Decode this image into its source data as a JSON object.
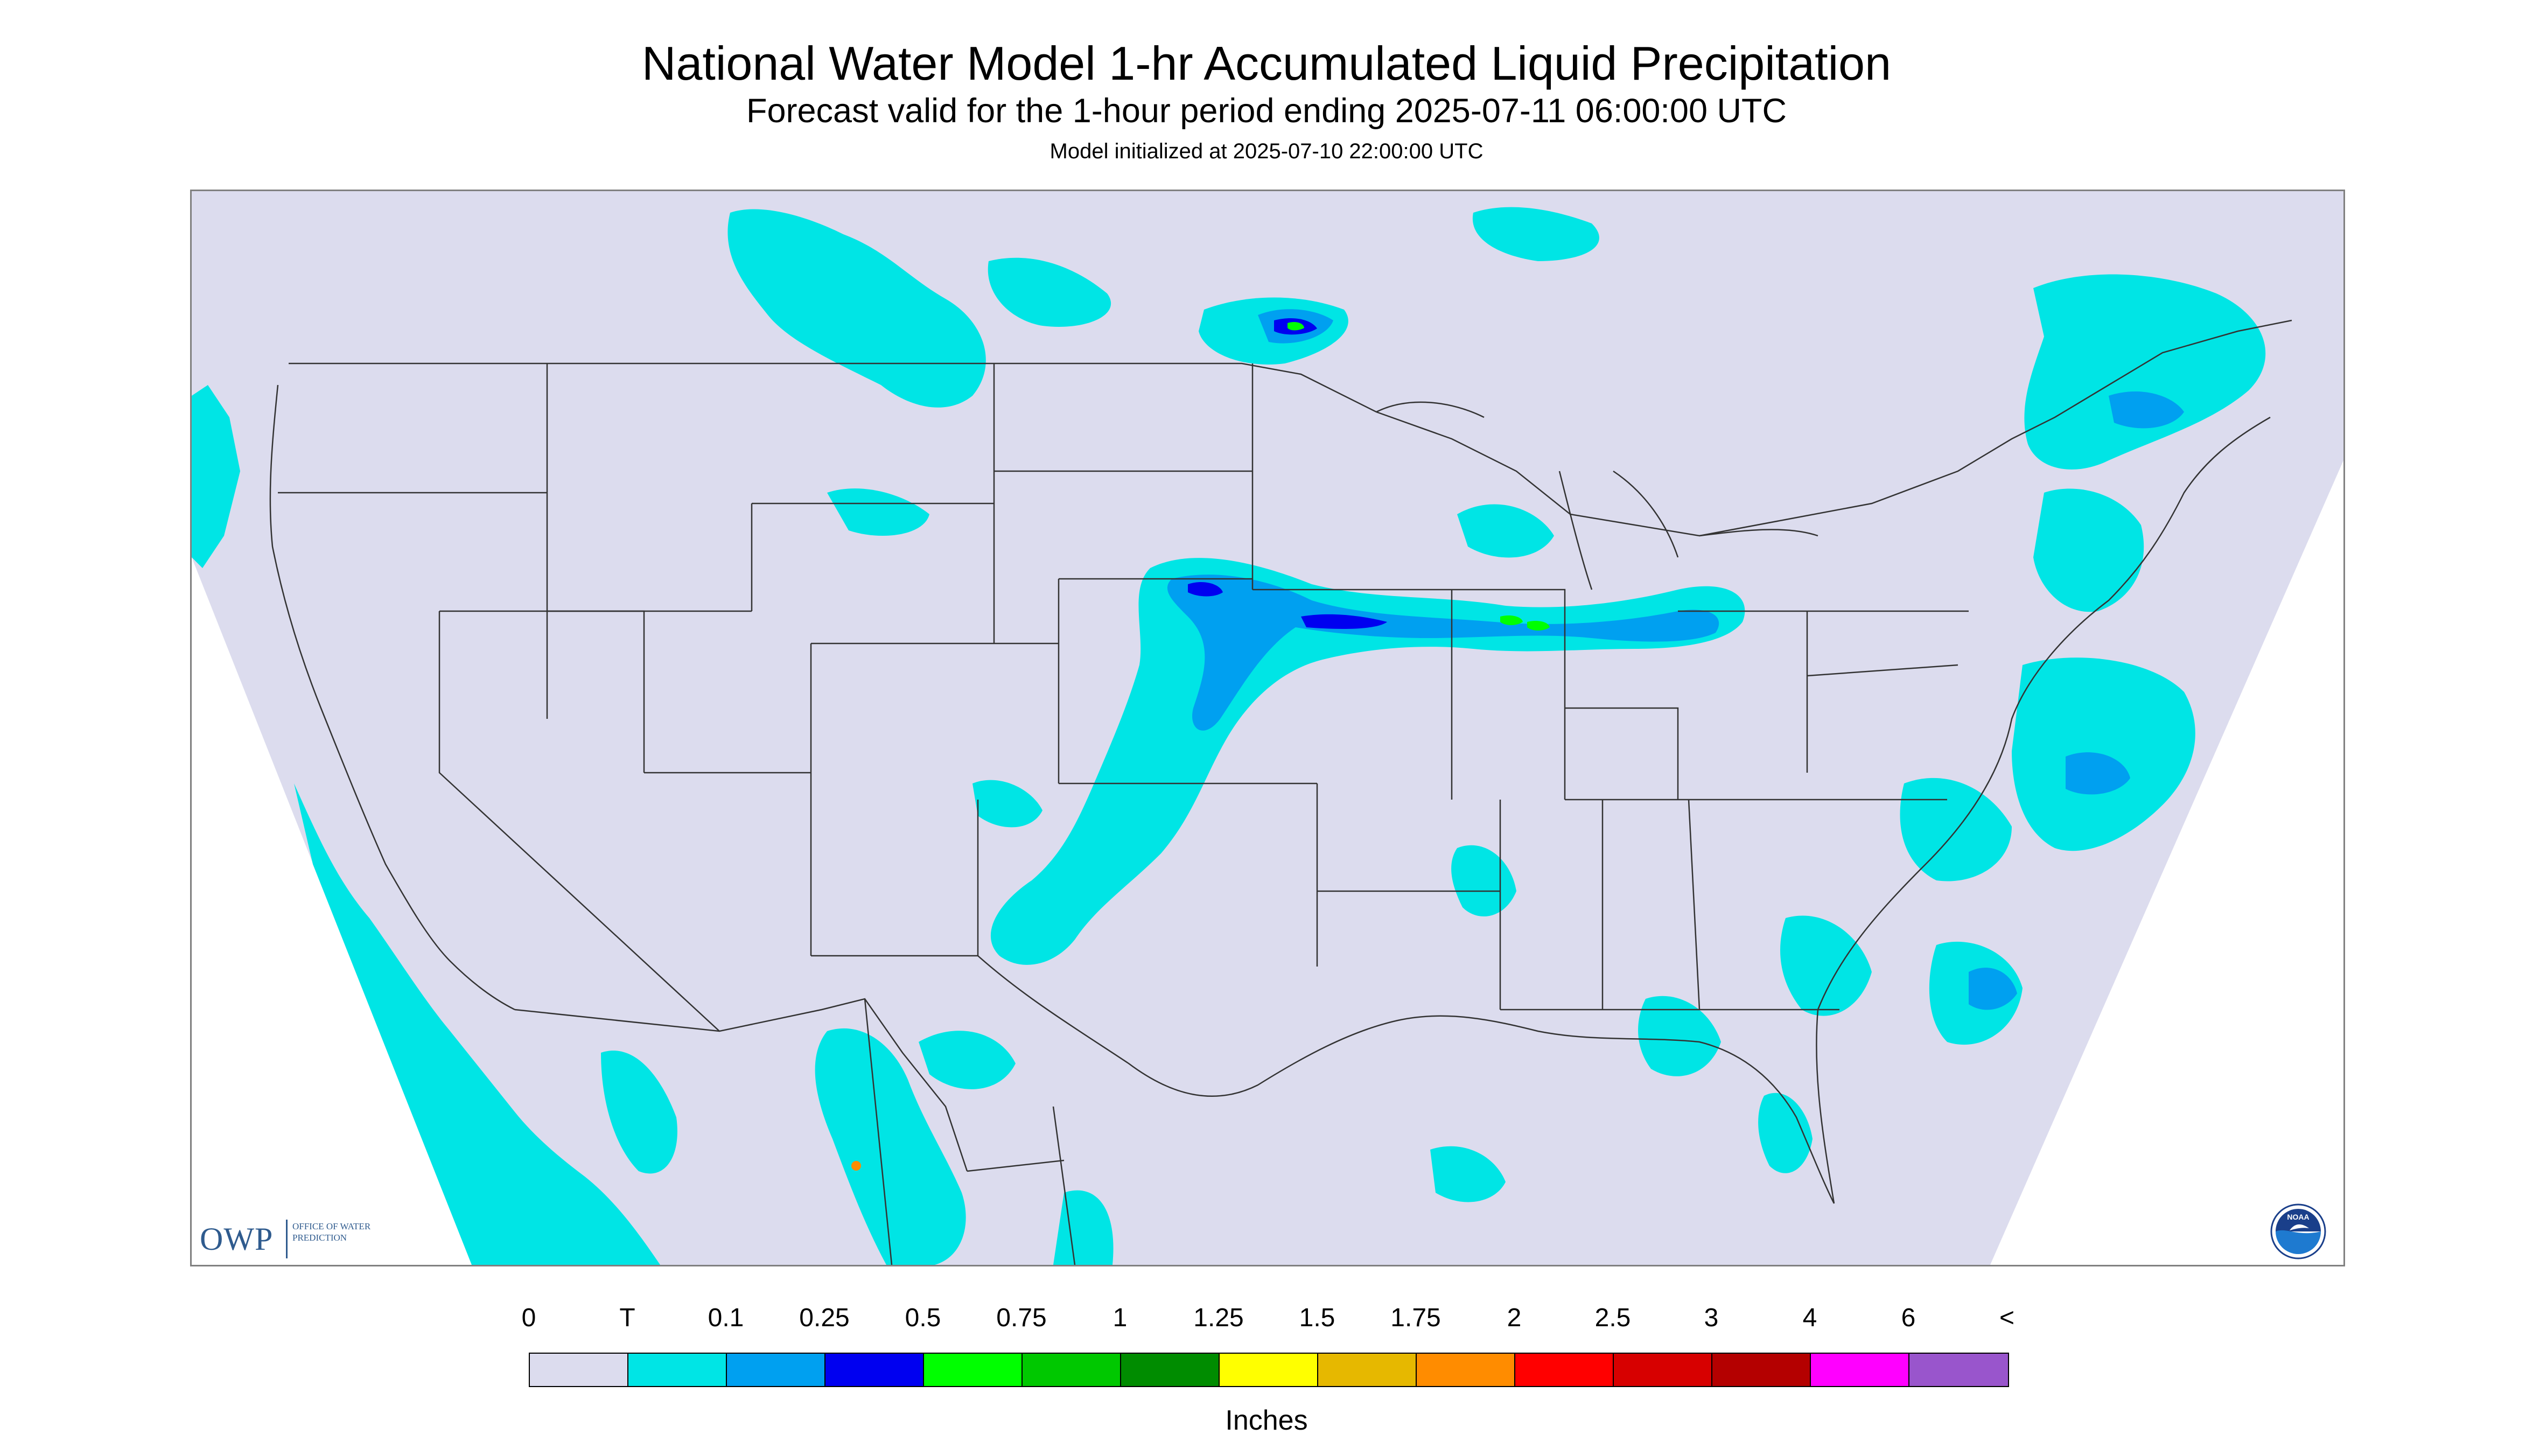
{
  "title": "National Water Model 1-hr Accumulated Liquid Precipitation",
  "subtitle": "Forecast valid for the 1-hour period ending 2025-07-11 06:00:00 UTC",
  "init_line": "Model initialized at 2025-07-10 22:00:00 UTC",
  "map": {
    "background_color": "#dcdcee",
    "outside_color": "#ffffff",
    "boundary_color": "#333333",
    "logos": {
      "owp": {
        "letters": "OWP",
        "words": "OFFICE OF WATER PREDICTION"
      },
      "noaa": {
        "text": "NOAA",
        "icon": "noaa-emblem-icon"
      }
    }
  },
  "legend": {
    "units": "Inches",
    "tick_labels": [
      "0",
      "T",
      "0.1",
      "0.25",
      "0.5",
      "0.75",
      "1",
      "1.25",
      "1.5",
      "1.75",
      "2",
      "2.5",
      "3",
      "4",
      "6",
      "<"
    ],
    "colors": [
      "#dcdcee",
      "#00e5e5",
      "#00a0f0",
      "#0000f0",
      "#00ff00",
      "#00c800",
      "#008c00",
      "#ffff00",
      "#e6b800",
      "#ff8c00",
      "#ff0000",
      "#d70000",
      "#b40000",
      "#ff00ff",
      "#9955cc"
    ]
  }
}
